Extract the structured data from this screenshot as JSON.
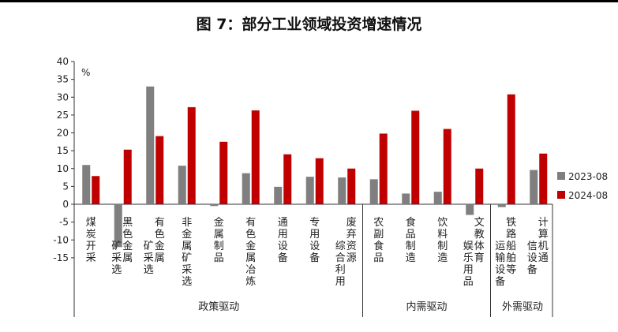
{
  "chart_data": {
    "type": "bar",
    "title": "图 7：部分工业领域投资增速情况",
    "unit": "%",
    "ylim": [
      -15,
      40
    ],
    "yticks": [
      "40",
      "35",
      "30",
      "25",
      "20",
      "15",
      "10",
      "5",
      "0",
      "-5",
      "-10",
      "-15"
    ],
    "categories": [
      "煤炭开采",
      "黑色金属矿采选",
      "有色金属矿采选",
      "非金属矿采选",
      "金属制品",
      "有色金属冶炼",
      "通用设备",
      "专用设备",
      "废弃资源综合利用",
      "农副食品",
      "食品制造",
      "饮料制造",
      "文教体育娱乐用品",
      "铁路船舶等运输设备",
      "计算机通信设备"
    ],
    "series": [
      {
        "name": "2023-08",
        "color": "#7f7f7f",
        "values": [
          11.0,
          -12.0,
          33.0,
          10.8,
          -0.5,
          8.7,
          4.9,
          7.7,
          7.5,
          7.0,
          3.0,
          3.5,
          -3.0,
          -0.8,
          9.6
        ]
      },
      {
        "name": "2024-08",
        "color": "#c00000",
        "values": [
          7.9,
          15.3,
          19.1,
          27.2,
          17.5,
          26.3,
          14.0,
          12.9,
          10.0,
          19.8,
          26.2,
          21.1,
          10.0,
          30.8,
          14.2
        ]
      }
    ],
    "groups": [
      {
        "label": "政策驱动",
        "start": 0,
        "end": 8
      },
      {
        "label": "内需驱动",
        "start": 9,
        "end": 12
      },
      {
        "label": "外需驱动",
        "start": 13,
        "end": 14
      }
    ],
    "legend": "right"
  }
}
